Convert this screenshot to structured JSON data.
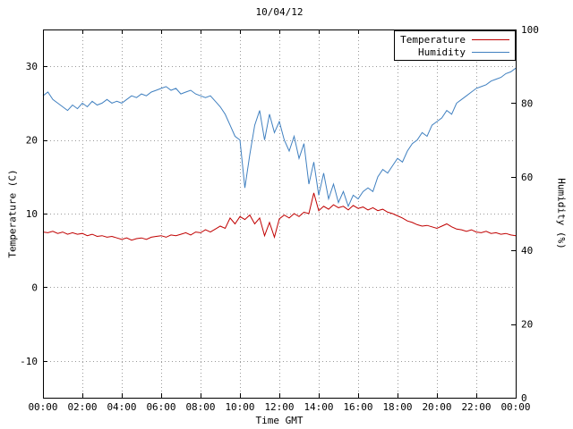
{
  "title": "10/04/12",
  "axes": {
    "x": {
      "label": "Time GMT",
      "min_hour": 0,
      "max_hour": 24,
      "tick_step_hours": 2,
      "tick_labels": [
        "00:00",
        "02:00",
        "04:00",
        "06:00",
        "08:00",
        "10:00",
        "12:00",
        "14:00",
        "16:00",
        "18:00",
        "20:00",
        "22:00",
        "00:00"
      ]
    },
    "y_left": {
      "label": "Temperature (C)",
      "min": -15,
      "max": 35,
      "ticks": [
        -10,
        0,
        10,
        20,
        30
      ]
    },
    "y_right": {
      "label": "Humidity (%)",
      "min": 0,
      "max": 100,
      "ticks": [
        0,
        20,
        40,
        60,
        80,
        100
      ]
    }
  },
  "legend": {
    "entries": [
      {
        "label": "Temperature",
        "color": "#c00000"
      },
      {
        "label": "Humidity",
        "color": "#4080c0"
      }
    ]
  },
  "chart_data": {
    "type": "line",
    "title": "10/04/12",
    "xlabel": "Time GMT",
    "ylabel_left": "Temperature (C)",
    "ylabel_right": "Humidity (%)",
    "grid": true,
    "legend_position": "top-right",
    "x_range_hours": [
      0,
      24
    ],
    "x_start_hour": 0,
    "x_step_hours": 0.25,
    "y_left_range": [
      -15,
      35
    ],
    "y_right_range": [
      0,
      100
    ],
    "series": [
      {
        "name": "Temperature",
        "axis": "left",
        "unit": "C",
        "color": "#c00000",
        "values": [
          7.5,
          7.4,
          7.6,
          7.3,
          7.5,
          7.2,
          7.4,
          7.2,
          7.3,
          7.0,
          7.2,
          6.9,
          7.0,
          6.8,
          6.9,
          6.7,
          6.5,
          6.7,
          6.4,
          6.6,
          6.7,
          6.5,
          6.8,
          6.9,
          7.0,
          6.8,
          7.1,
          7.0,
          7.2,
          7.4,
          7.1,
          7.5,
          7.4,
          7.8,
          7.5,
          7.9,
          8.3,
          8.0,
          9.4,
          8.6,
          9.6,
          9.2,
          9.8,
          8.6,
          9.4,
          7.0,
          8.8,
          6.8,
          9.3,
          9.8,
          9.4,
          10.0,
          9.6,
          10.2,
          10.0,
          12.8,
          10.4,
          11.0,
          10.6,
          11.2,
          10.8,
          11.0,
          10.5,
          11.1,
          10.7,
          10.9,
          10.5,
          10.8,
          10.4,
          10.6,
          10.2,
          10.0,
          9.7,
          9.4,
          9.0,
          8.8,
          8.5,
          8.3,
          8.4,
          8.2,
          8.0,
          8.3,
          8.6,
          8.2,
          7.9,
          7.8,
          7.6,
          7.8,
          7.5,
          7.4,
          7.6,
          7.3,
          7.4,
          7.2,
          7.3,
          7.1,
          7.0
        ]
      },
      {
        "name": "Humidity",
        "axis": "right",
        "unit": "%",
        "color": "#4080c0",
        "values": [
          82,
          83,
          81,
          80,
          79,
          78,
          79.5,
          78.5,
          80,
          79,
          80.5,
          79.5,
          80,
          81,
          80,
          80.5,
          80,
          81,
          82,
          81.5,
          82.5,
          82,
          83,
          83.5,
          84,
          84.5,
          83.5,
          84,
          82.5,
          83,
          83.5,
          82.5,
          82,
          81.5,
          82,
          80.5,
          79,
          77,
          74,
          71,
          70,
          57,
          66,
          74,
          78,
          70,
          77,
          72,
          75,
          70,
          67,
          71,
          65,
          69,
          58,
          64,
          55,
          61,
          54,
          58,
          53,
          56,
          52,
          55,
          54,
          56,
          57,
          56,
          60,
          62,
          61,
          63,
          65,
          64,
          67,
          69,
          70,
          72,
          71,
          74,
          75,
          76,
          78,
          77,
          80,
          81,
          82,
          83,
          84,
          84.5,
          85,
          86,
          86.5,
          87,
          88,
          88.5,
          89.5
        ]
      }
    ]
  }
}
